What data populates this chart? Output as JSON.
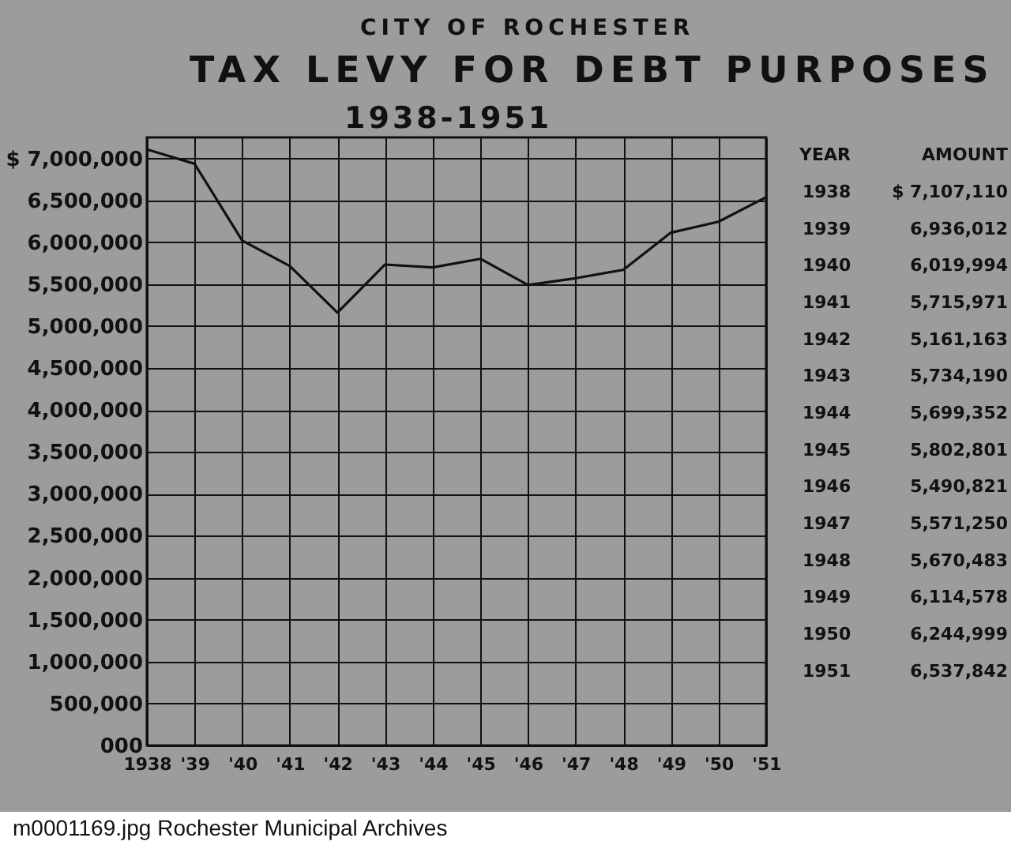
{
  "chart_data": {
    "type": "line",
    "title": "TAX LEVY FOR DEBT PURPOSES",
    "subtitle": "1938-1951",
    "annotations": [
      "CITY OF ROCHESTER",
      "YEAR",
      "AMOUNT",
      "m0001169.jpg  Rochester Municipal Archives",
      "1938",
      "$ 7,107,110",
      "1939",
      "6,936,012",
      "1940",
      "6,019,994",
      "1941",
      "5,715,971",
      "1942",
      "5,161,163",
      "1943",
      "5,734,190",
      "1944",
      "5,699,352",
      "1945",
      "5,802,801",
      "1946",
      "5,490,821",
      "1947",
      "5,571,250",
      "1948",
      "5,670,483",
      "1949",
      "6,114,578",
      "1950",
      "6,244,999",
      "1951",
      "6,537,842"
    ],
    "x": [
      1938,
      1939,
      1940,
      1941,
      1942,
      1943,
      1944,
      1945,
      1946,
      1947,
      1948,
      1949,
      1950,
      1951
    ],
    "values": [
      7107110,
      6936012,
      6019994,
      5715971,
      5161163,
      5734190,
      5699352,
      5802801,
      5490821,
      5571250,
      5670483,
      6114578,
      6244999,
      6537842
    ],
    "color": "#111111",
    "xlim": [
      1938,
      1951
    ],
    "xticks": [
      {
        "value": 1938,
        "label": "1938"
      },
      {
        "value": 1939,
        "label": "'39"
      },
      {
        "value": 1940,
        "label": "'40"
      },
      {
        "value": 1941,
        "label": "'41"
      },
      {
        "value": 1942,
        "label": "'42"
      },
      {
        "value": 1943,
        "label": "'43"
      },
      {
        "value": 1944,
        "label": "'44"
      },
      {
        "value": 1945,
        "label": "'45"
      },
      {
        "value": 1946,
        "label": "'46"
      },
      {
        "value": 1947,
        "label": "'47"
      },
      {
        "value": 1948,
        "label": "'48"
      },
      {
        "value": 1949,
        "label": "'49"
      },
      {
        "value": 1950,
        "label": "'50"
      },
      {
        "value": 1951,
        "label": "'51"
      }
    ],
    "ylim": [
      0,
      7250000
    ],
    "yticks": [
      {
        "value": 0,
        "label": "000"
      },
      {
        "value": 500000,
        "label": "500,000"
      },
      {
        "value": 1000000,
        "label": "1,000,000"
      },
      {
        "value": 1500000,
        "label": "1,500,000"
      },
      {
        "value": 2000000,
        "label": "2,000,000"
      },
      {
        "value": 2500000,
        "label": "2,500,000"
      },
      {
        "value": 3000000,
        "label": "3,000,000"
      },
      {
        "value": 3500000,
        "label": "3,500,000"
      },
      {
        "value": 4000000,
        "label": "4,000,000"
      },
      {
        "value": 4500000,
        "label": "4,500,000"
      },
      {
        "value": 5000000,
        "label": "5,000,000"
      },
      {
        "value": 5500000,
        "label": "5,500,000"
      },
      {
        "value": 6000000,
        "label": "6,000,000"
      },
      {
        "value": 6500000,
        "label": "6,500,000"
      },
      {
        "value": 7000000,
        "label": "$ 7,000,000"
      }
    ],
    "grid": true,
    "marker": "none"
  }
}
